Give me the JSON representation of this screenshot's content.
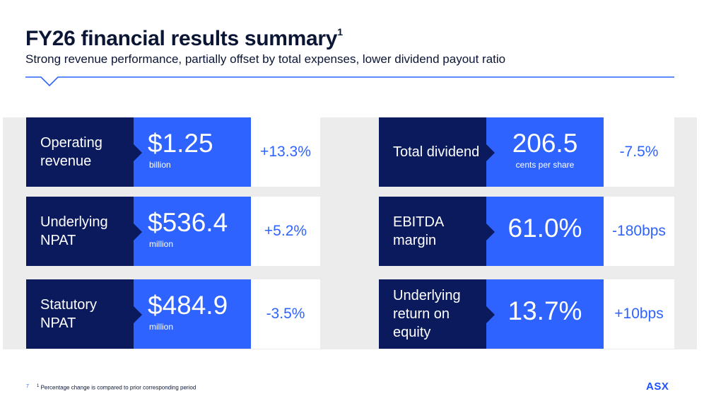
{
  "header": {
    "title": "FY26 financial results summary",
    "title_footnote_marker": "1",
    "subtitle": "Strong revenue performance, partially offset by total expenses, lower dividend payout ratio"
  },
  "left_cards": [
    {
      "label": "Operating revenue",
      "value": "$1.25",
      "unit": "billion",
      "change": "+13.3%"
    },
    {
      "label": "Underlying NPAT",
      "value": "$536.4",
      "unit": "million",
      "change": "+5.2%"
    },
    {
      "label": "Statutory NPAT",
      "value": "$484.9",
      "unit": "million",
      "change": "-3.5%"
    }
  ],
  "right_cards": [
    {
      "label": "Total dividend",
      "value": "206.5",
      "unit": "cents per share",
      "change": "-7.5%"
    },
    {
      "label": "EBITDA margin",
      "value": "61.0%",
      "unit": "",
      "change": "-180bps"
    },
    {
      "label": "Underlying return on equity",
      "value": "13.7%",
      "unit": "",
      "change": "+10bps"
    }
  ],
  "footer": {
    "page_number": "7",
    "footnote_marker": "1",
    "footnote": "Percentage change is compared to prior corresponding period",
    "logo": "ASX"
  },
  "colors": {
    "navy": "#0a1a5c",
    "blue": "#2e63ff",
    "panel": "#ececec"
  }
}
